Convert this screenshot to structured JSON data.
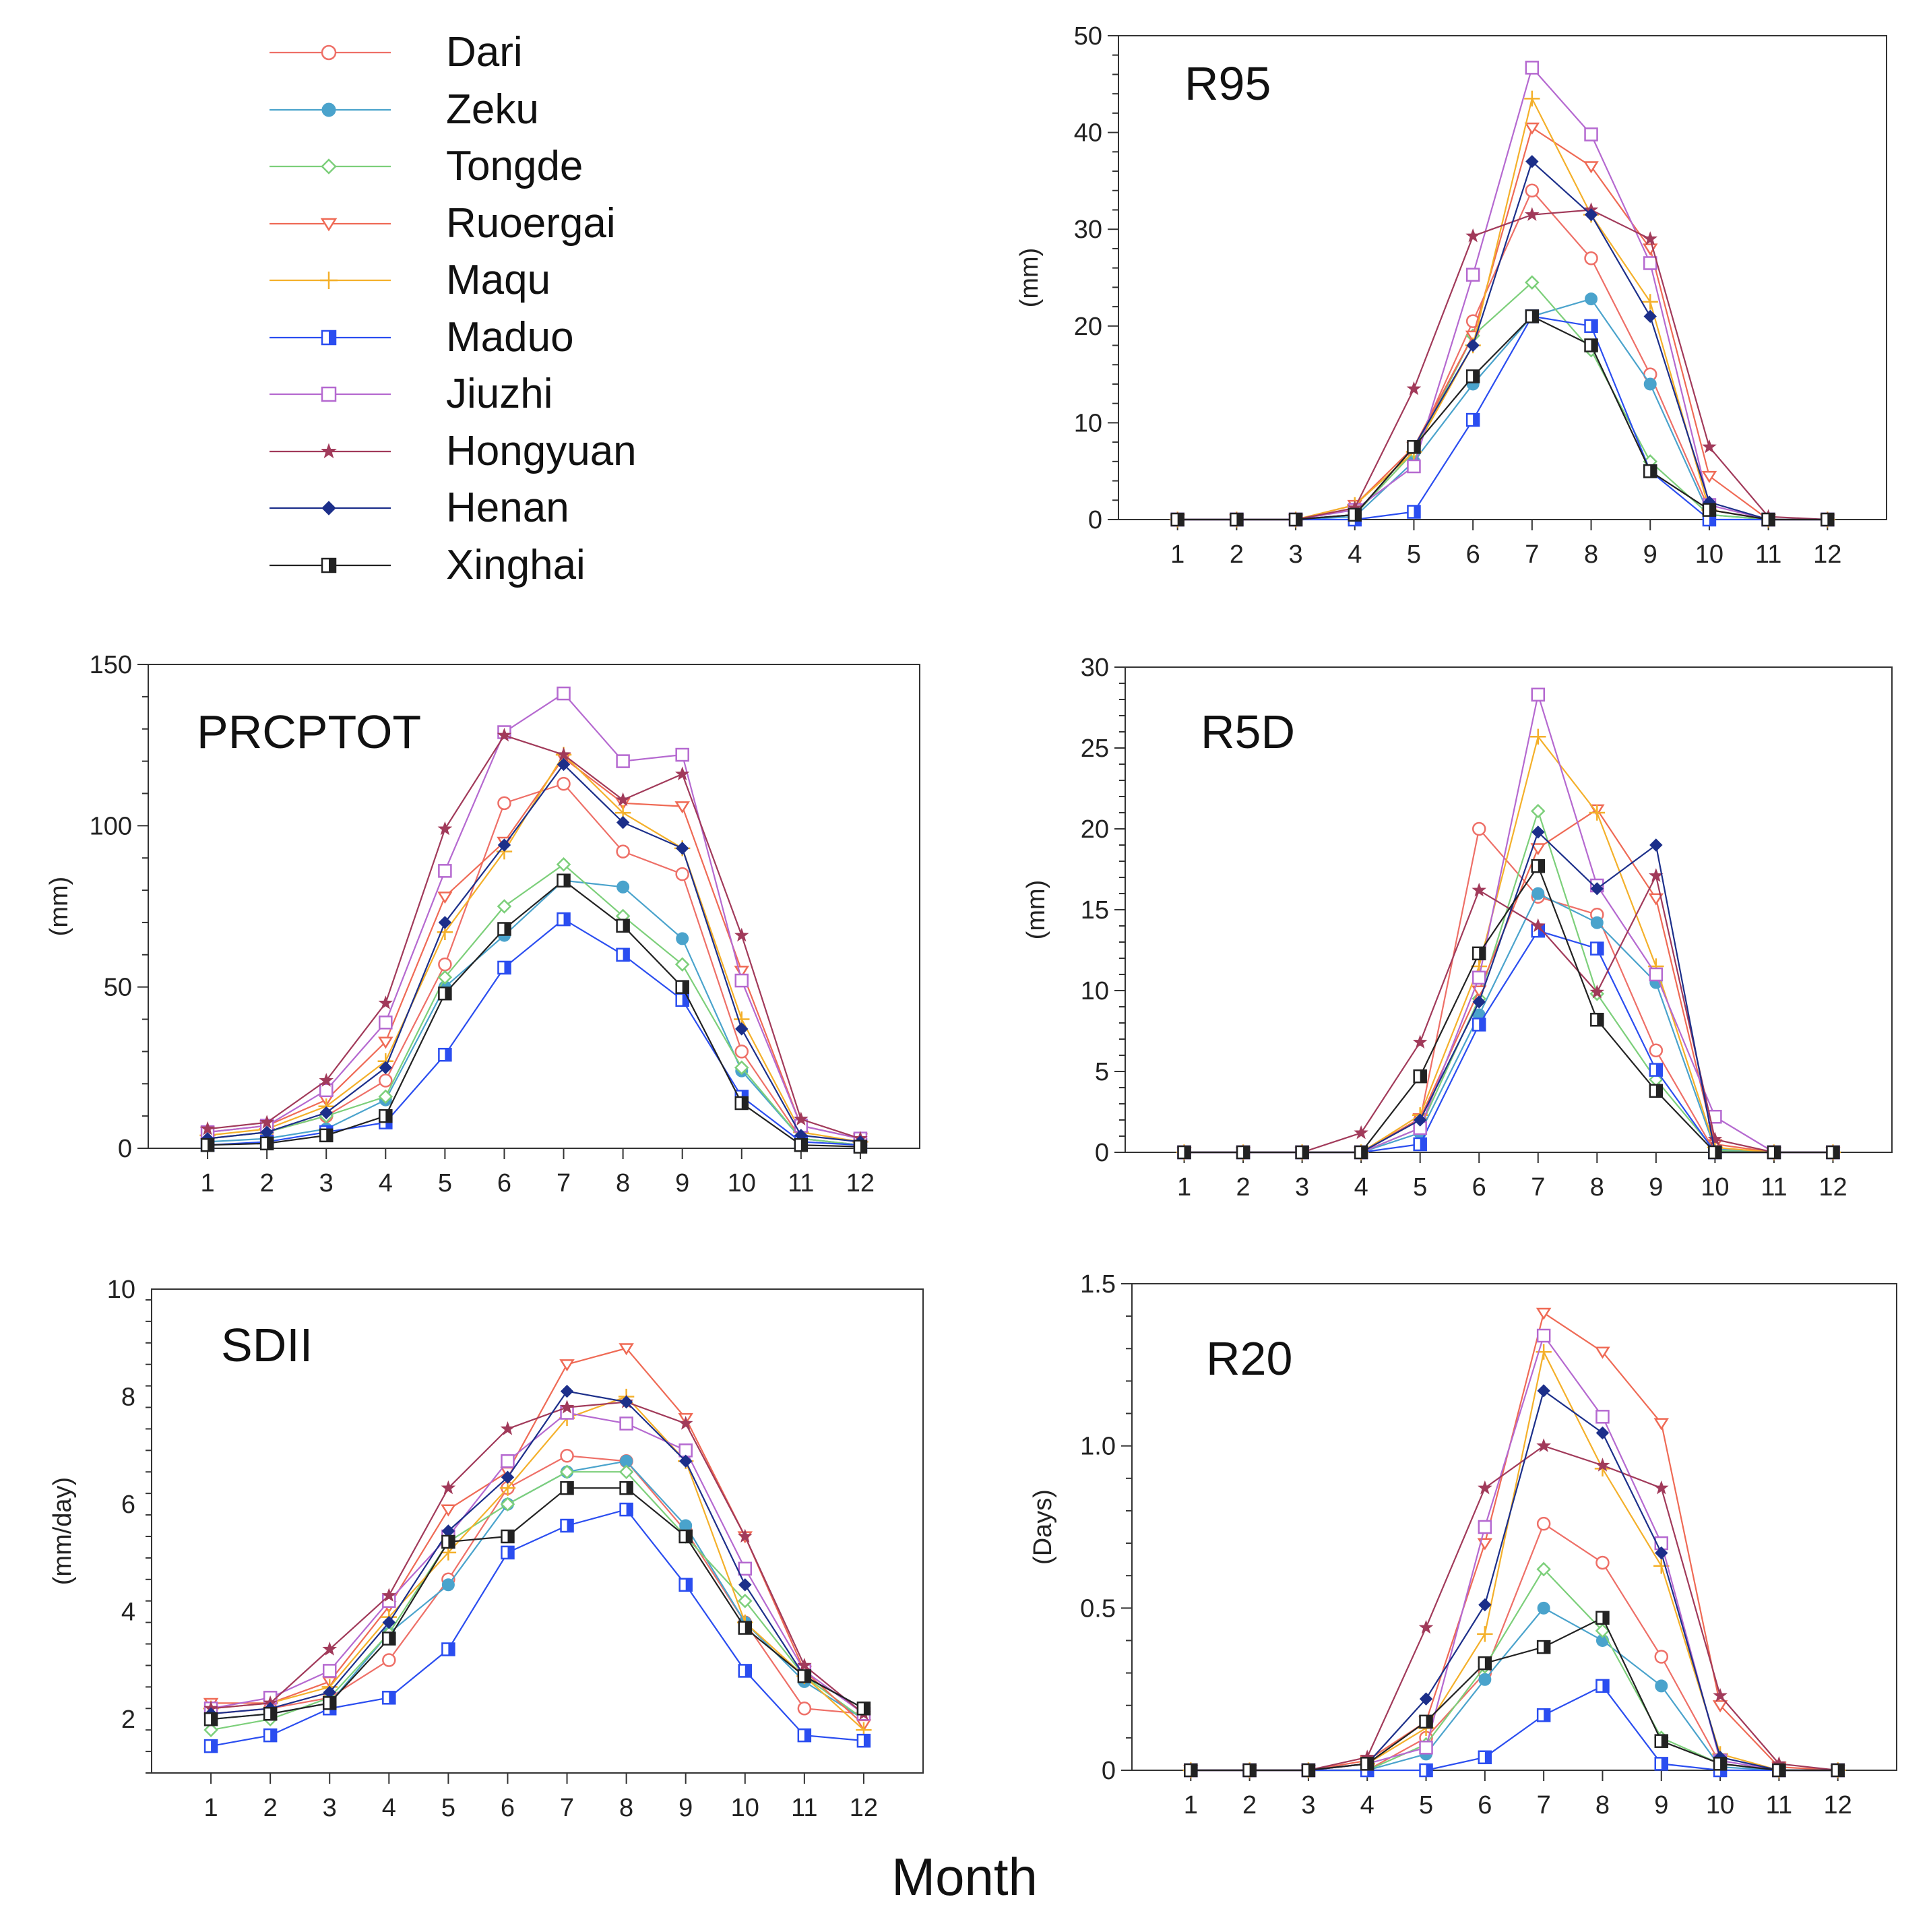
{
  "colors": {
    "Dari": "#ee6f67",
    "Zeku": "#4aa3cc",
    "Tongde": "#7ccf7a",
    "Ruoergai": "#ef6a55",
    "Maqu": "#f4b02a",
    "Maduo": "#2a4df0",
    "Jiuzhi": "#b569d0",
    "Hongyuan": "#a13a5a",
    "Henan": "#1c2f8a",
    "Xinghai": "#222222"
  },
  "legend": {
    "items": [
      {
        "name": "Dari",
        "marker": "circle-open"
      },
      {
        "name": "Zeku",
        "marker": "circle-filled"
      },
      {
        "name": "Tongde",
        "marker": "diamond-open"
      },
      {
        "name": "Ruoergai",
        "marker": "triangle-down-open"
      },
      {
        "name": "Maqu",
        "marker": "plus"
      },
      {
        "name": "Maduo",
        "marker": "square-half"
      },
      {
        "name": "Jiuzhi",
        "marker": "square-open"
      },
      {
        "name": "Hongyuan",
        "marker": "star"
      },
      {
        "name": "Henan",
        "marker": "diamond-filled"
      },
      {
        "name": "Xinghai",
        "marker": "square-half"
      }
    ]
  },
  "xlabel_global": "Month",
  "chart_data": [
    {
      "type": "line",
      "title": "R95",
      "xlabel": "",
      "ylabel": "(mm)",
      "ylim": [
        0,
        50
      ],
      "yticks": [
        0,
        10,
        20,
        30,
        40,
        50
      ],
      "x": [
        1,
        2,
        3,
        4,
        5,
        6,
        7,
        8,
        9,
        10,
        11,
        12
      ],
      "series": [
        {
          "name": "Dari",
          "values": [
            0,
            0,
            0,
            0.5,
            7,
            20.5,
            34,
            27,
            15,
            1,
            0,
            0
          ]
        },
        {
          "name": "Zeku",
          "values": [
            0,
            0,
            0,
            0.3,
            6,
            14,
            21,
            22.8,
            14,
            0.5,
            0,
            0
          ]
        },
        {
          "name": "Tongde",
          "values": [
            0,
            0,
            0,
            0.5,
            7,
            19,
            24.5,
            17.5,
            6,
            0.5,
            0,
            0
          ]
        },
        {
          "name": "Ruoergai",
          "values": [
            0,
            0,
            0,
            1.5,
            7.5,
            19,
            40.5,
            36.5,
            28,
            4.5,
            0,
            0
          ]
        },
        {
          "name": "Maqu",
          "values": [
            0,
            0,
            0,
            1.5,
            7,
            18,
            43.5,
            31.5,
            22.5,
            1,
            0,
            0
          ]
        },
        {
          "name": "Maduo",
          "values": [
            0,
            0,
            0,
            0,
            0.8,
            10.3,
            21,
            20,
            5,
            0,
            0,
            0
          ]
        },
        {
          "name": "Jiuzhi",
          "values": [
            0,
            0,
            0,
            1,
            5.5,
            25.3,
            46.7,
            39.8,
            26.5,
            1.5,
            0,
            0
          ]
        },
        {
          "name": "Hongyuan",
          "values": [
            0,
            0,
            0,
            1.2,
            13.5,
            29.3,
            31.5,
            32,
            29,
            7.5,
            0.3,
            0
          ]
        },
        {
          "name": "Henan",
          "values": [
            0,
            0,
            0,
            0.5,
            7.5,
            18,
            37,
            31.5,
            21,
            1.8,
            0,
            0
          ]
        },
        {
          "name": "Xinghai",
          "values": [
            0,
            0,
            0,
            0.5,
            7.5,
            14.8,
            21,
            18,
            5,
            1,
            0,
            0
          ]
        }
      ]
    },
    {
      "type": "line",
      "title": "PRCPTOT",
      "xlabel": "",
      "ylabel": "(mm)",
      "ylim": [
        0,
        150
      ],
      "yticks": [
        0,
        50,
        100,
        150
      ],
      "x": [
        1,
        2,
        3,
        4,
        5,
        6,
        7,
        8,
        9,
        10,
        11,
        12
      ],
      "series": [
        {
          "name": "Dari",
          "values": [
            3,
            5,
            10,
            21,
            57,
            107,
            113,
            92,
            85,
            30,
            3,
            1
          ]
        },
        {
          "name": "Zeku",
          "values": [
            2,
            3,
            6,
            15,
            50,
            66,
            83,
            81,
            65,
            24,
            3,
            1
          ]
        },
        {
          "name": "Tongde",
          "values": [
            3,
            5,
            10,
            16,
            53,
            75,
            88,
            72,
            57,
            25,
            3,
            1
          ]
        },
        {
          "name": "Ruoergai",
          "values": [
            5,
            7,
            15,
            33,
            78,
            95,
            121,
            107,
            106,
            55,
            7,
            3
          ]
        },
        {
          "name": "Maqu",
          "values": [
            4,
            6,
            13,
            27,
            67,
            92,
            122,
            104,
            93,
            40,
            5,
            2
          ]
        },
        {
          "name": "Maduo",
          "values": [
            1,
            2,
            5,
            8,
            29,
            56,
            71,
            60,
            46,
            16,
            2,
            1
          ]
        },
        {
          "name": "Jiuzhi",
          "values": [
            5,
            7,
            18,
            39,
            86,
            129,
            141,
            120,
            122,
            52,
            7,
            3
          ]
        },
        {
          "name": "Hongyuan",
          "values": [
            6,
            8,
            21,
            45,
            99,
            128,
            122,
            108,
            116,
            66,
            9,
            3
          ]
        },
        {
          "name": "Henan",
          "values": [
            3,
            5,
            11,
            25,
            70,
            94,
            119,
            101,
            93,
            37,
            4,
            2
          ]
        },
        {
          "name": "Xinghai",
          "values": [
            1,
            1.5,
            4,
            10,
            48,
            68,
            83,
            69,
            50,
            14,
            1,
            0.5
          ]
        }
      ]
    },
    {
      "type": "line",
      "title": "R5D",
      "xlabel": "",
      "ylabel": "(mm)",
      "ylim": [
        0,
        30
      ],
      "yticks": [
        0,
        5,
        10,
        15,
        20,
        25,
        30
      ],
      "x": [
        1,
        2,
        3,
        4,
        5,
        6,
        7,
        8,
        9,
        10,
        11,
        12
      ],
      "series": [
        {
          "name": "Dari",
          "values": [
            0,
            0,
            0,
            0,
            2,
            20,
            15.8,
            14.7,
            6.3,
            0,
            0,
            0
          ]
        },
        {
          "name": "Zeku",
          "values": [
            0,
            0,
            0,
            0,
            1.2,
            8.5,
            16,
            14.2,
            10.5,
            0.2,
            0,
            0
          ]
        },
        {
          "name": "Tongde",
          "values": [
            0,
            0,
            0,
            0,
            1.5,
            9.5,
            21.1,
            9.8,
            4.5,
            0.1,
            0,
            0
          ]
        },
        {
          "name": "Ruoergai",
          "values": [
            0,
            0,
            0,
            0,
            2.1,
            10,
            18.8,
            21.2,
            15.7,
            0.5,
            0,
            0
          ]
        },
        {
          "name": "Maqu",
          "values": [
            0,
            0,
            0,
            0,
            2.3,
            11.5,
            25.7,
            21,
            11.5,
            0.3,
            0,
            0
          ]
        },
        {
          "name": "Maduo",
          "values": [
            0,
            0,
            0,
            0,
            0.5,
            7.9,
            13.7,
            12.6,
            5.1,
            0,
            0,
            0
          ]
        },
        {
          "name": "Jiuzhi",
          "values": [
            0,
            0,
            0,
            0,
            1.5,
            10.8,
            28.3,
            16.5,
            11,
            2.2,
            0,
            0
          ]
        },
        {
          "name": "Hongyuan",
          "values": [
            0,
            0,
            0,
            1.2,
            6.8,
            16.2,
            14,
            9.9,
            17.1,
            0.8,
            0,
            0
          ]
        },
        {
          "name": "Henan",
          "values": [
            0,
            0,
            0,
            0,
            2,
            9.3,
            19.8,
            16.3,
            19,
            0,
            0,
            0
          ]
        },
        {
          "name": "Xinghai",
          "values": [
            0,
            0,
            0,
            0,
            4.7,
            12.3,
            17.7,
            8.2,
            3.8,
            0,
            0,
            0
          ]
        }
      ]
    },
    {
      "type": "line",
      "title": "SDII",
      "xlabel": "",
      "ylabel": "(mm/day)",
      "ylim": [
        1,
        10
      ],
      "yticks": [
        2,
        4,
        6,
        8,
        10
      ],
      "x": [
        1,
        2,
        3,
        4,
        5,
        6,
        7,
        8,
        9,
        10,
        11,
        12
      ],
      "series": [
        {
          "name": "Dari",
          "values": [
            2.1,
            2.2,
            2.4,
            3.1,
            4.6,
            6.3,
            6.9,
            6.8,
            5.5,
            3.8,
            2.2,
            2.1
          ]
        },
        {
          "name": "Zeku",
          "values": [
            2,
            2.1,
            2.3,
            3.6,
            4.5,
            6,
            6.6,
            6.8,
            5.6,
            3.8,
            2.7,
            2
          ]
        },
        {
          "name": "Tongde",
          "values": [
            1.8,
            2,
            2.4,
            3.6,
            5.3,
            6,
            6.6,
            6.6,
            5.4,
            4.2,
            2.8,
            2
          ]
        },
        {
          "name": "Ruoergai",
          "values": [
            2.3,
            2.3,
            2.7,
            4.1,
            5.9,
            6.6,
            8.6,
            8.9,
            7.6,
            5.4,
            2.9,
            1.9
          ]
        },
        {
          "name": "Maqu",
          "values": [
            2.2,
            2.3,
            2.6,
            3.9,
            5.1,
            6.3,
            7.6,
            8,
            6.8,
            3.8,
            2.8,
            1.8
          ]
        },
        {
          "name": "Maduo",
          "values": [
            1.5,
            1.7,
            2.2,
            2.4,
            3.3,
            5.1,
            5.6,
            5.9,
            4.5,
            2.9,
            1.7,
            1.6
          ]
        },
        {
          "name": "Jiuzhi",
          "values": [
            2.2,
            2.4,
            2.9,
            4.2,
            5.4,
            6.8,
            7.7,
            7.5,
            7,
            4.8,
            2.9,
            2.1
          ]
        },
        {
          "name": "Hongyuan",
          "values": [
            2.2,
            2.3,
            3.3,
            4.3,
            6.3,
            7.4,
            7.8,
            7.9,
            7.5,
            5.4,
            3,
            2.1
          ]
        },
        {
          "name": "Henan",
          "values": [
            2.1,
            2.2,
            2.5,
            3.8,
            5.5,
            6.5,
            8.1,
            7.9,
            6.8,
            4.5,
            2.8,
            2.2
          ]
        },
        {
          "name": "Xinghai",
          "values": [
            2,
            2.1,
            2.3,
            3.5,
            5.3,
            5.4,
            6.3,
            6.3,
            5.4,
            3.7,
            2.8,
            2.2
          ]
        }
      ]
    },
    {
      "type": "line",
      "title": "R20",
      "xlabel": "",
      "ylabel": "(Days)",
      "ylim": [
        0,
        1.5
      ],
      "yticks": [
        0,
        0.5,
        1.0,
        1.5
      ],
      "x": [
        1,
        2,
        3,
        4,
        5,
        6,
        7,
        8,
        9,
        10,
        11,
        12
      ],
      "series": [
        {
          "name": "Dari",
          "values": [
            0,
            0,
            0,
            0,
            0.1,
            0.3,
            0.76,
            0.64,
            0.35,
            0.02,
            0,
            0
          ]
        },
        {
          "name": "Zeku",
          "values": [
            0,
            0,
            0,
            0,
            0.05,
            0.28,
            0.5,
            0.4,
            0.26,
            0.01,
            0,
            0
          ]
        },
        {
          "name": "Tongde",
          "values": [
            0,
            0,
            0,
            0,
            0.08,
            0.32,
            0.62,
            0.43,
            0.1,
            0.02,
            0,
            0
          ]
        },
        {
          "name": "Ruoergai",
          "values": [
            0,
            0,
            0,
            0.03,
            0.15,
            0.7,
            1.41,
            1.29,
            1.07,
            0.2,
            0.01,
            0
          ]
        },
        {
          "name": "Maqu",
          "values": [
            0,
            0,
            0,
            0.02,
            0.13,
            0.42,
            1.29,
            0.93,
            0.63,
            0.05,
            0,
            0
          ]
        },
        {
          "name": "Maduo",
          "values": [
            0,
            0,
            0,
            0,
            0,
            0.04,
            0.17,
            0.26,
            0.02,
            0,
            0,
            0
          ]
        },
        {
          "name": "Jiuzhi",
          "values": [
            0,
            0,
            0,
            0.02,
            0.07,
            0.75,
            1.34,
            1.09,
            0.7,
            0.03,
            0,
            0
          ]
        },
        {
          "name": "Hongyuan",
          "values": [
            0,
            0,
            0,
            0.04,
            0.44,
            0.87,
            1,
            0.94,
            0.87,
            0.23,
            0.02,
            0
          ]
        },
        {
          "name": "Henan",
          "values": [
            0,
            0,
            0,
            0.02,
            0.22,
            0.51,
            1.17,
            1.04,
            0.67,
            0.04,
            0,
            0
          ]
        },
        {
          "name": "Xinghai",
          "values": [
            0,
            0,
            0,
            0.02,
            0.15,
            0.33,
            0.38,
            0.47,
            0.09,
            0.02,
            0,
            0
          ]
        }
      ]
    }
  ]
}
